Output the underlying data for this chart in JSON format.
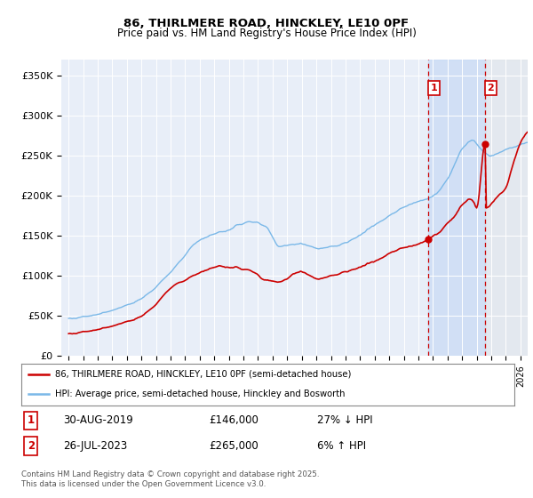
{
  "title": "86, THIRLMERE ROAD, HINCKLEY, LE10 0PF",
  "subtitle": "Price paid vs. HM Land Registry's House Price Index (HPI)",
  "legend_line1": "86, THIRLMERE ROAD, HINCKLEY, LE10 0PF (semi-detached house)",
  "legend_line2": "HPI: Average price, semi-detached house, Hinckley and Bosworth",
  "transaction1_date": "30-AUG-2019",
  "transaction1_price": "£146,000",
  "transaction1_hpi": "27% ↓ HPI",
  "transaction2_date": "26-JUL-2023",
  "transaction2_price": "£265,000",
  "transaction2_hpi": "6% ↑ HPI",
  "transaction1_x": 2019.67,
  "transaction1_y": 146000,
  "transaction2_x": 2023.57,
  "transaction2_y": 265000,
  "hpi_color": "#7ab8e8",
  "price_color": "#cc0000",
  "vline_color": "#cc0000",
  "footer": "Contains HM Land Registry data © Crown copyright and database right 2025.\nThis data is licensed under the Open Government Licence v3.0.",
  "ylim": [
    0,
    370000
  ],
  "xlim": [
    1994.5,
    2026.5
  ],
  "yticks": [
    0,
    50000,
    100000,
    150000,
    200000,
    250000,
    300000,
    350000
  ],
  "ytick_labels": [
    "£0",
    "£50K",
    "£100K",
    "£150K",
    "£200K",
    "£250K",
    "£300K",
    "£350K"
  ],
  "background_color": "#ffffff",
  "plot_bg_color": "#e8eef8"
}
